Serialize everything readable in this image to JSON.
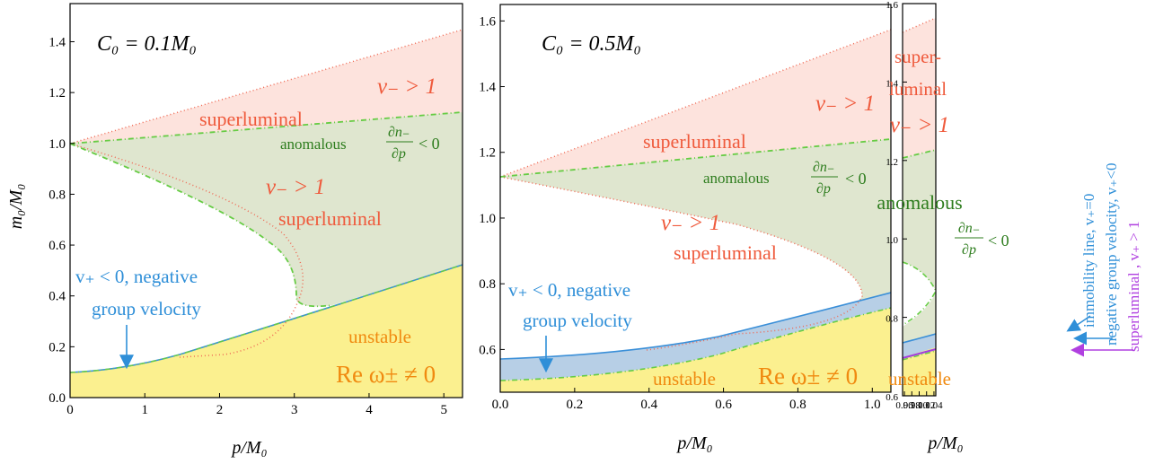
{
  "panels": [
    {
      "annotation": "C₀ = 0.1M₀",
      "xlabel": "p/M₀",
      "ylabel": "m₀/M₀",
      "xlim": [
        0,
        5.25
      ],
      "ylim": [
        0,
        1.55
      ],
      "xticks": [
        "0",
        "1",
        "2",
        "3",
        "4",
        "5"
      ],
      "yticks": [
        "0.0",
        "0.2",
        "0.4",
        "0.6",
        "0.8",
        "1.0",
        "1.2",
        "1.4"
      ],
      "labels": {
        "superluminal_top": "superluminal",
        "vminus_top": "v₋ > 1",
        "anomalous": "anomalous",
        "dn_num": "∂n₋",
        "dn_den": "∂p",
        "dn_rel": "< 0",
        "vminus_mid": "v₋ > 1",
        "superluminal_mid": "superluminal",
        "vplus_line1": "v₊ < 0, negative",
        "vplus_line2": "group velocity",
        "unstable": "unstable",
        "reomega": "Re ω± ≠ 0"
      }
    },
    {
      "annotation": "C₀ = 0.5M₀",
      "xlabel": "p/M₀",
      "xlim": [
        0,
        1.05
      ],
      "ylim": [
        0.47,
        1.65
      ],
      "xticks": [
        "0.0",
        "0.2",
        "0.4",
        "0.6",
        "0.8",
        "1.0"
      ],
      "yticks": [
        "0.6",
        "0.8",
        "1.0",
        "1.2",
        "1.4",
        "1.6"
      ],
      "labels": {
        "superluminal_top": "superluminal",
        "vminus_top": "v₋ > 1",
        "anomalous": "anomalous",
        "dn_num": "∂n₋",
        "dn_den": "∂p",
        "dn_rel": "< 0",
        "vminus_mid": "v₋ > 1",
        "superluminal_mid": "superluminal",
        "vplus_line1": "v₊ < 0, negative",
        "vplus_line2": "group velocity",
        "unstable": "unstable",
        "reomega": "Re ω± ≠ 0"
      }
    },
    {
      "xlabel": "p/M₀",
      "xlim": [
        0.955,
        1.045
      ],
      "ylim": [
        0.6,
        1.6
      ],
      "xticks": [
        "0.96",
        "0.98",
        "1.00",
        "1.02",
        "1.04"
      ],
      "yticks": [
        "0.6",
        "0.8",
        "1.0",
        "1.2",
        "1.4",
        "1.6"
      ],
      "labels": {
        "super": "super-",
        "luminal": "luminal",
        "vminus": "v₋ > 1",
        "anomalous": "anomalous",
        "dn_num": "∂n₋",
        "dn_den": "∂p",
        "dn_rel": "< 0",
        "unstable": "unstable"
      }
    }
  ],
  "side_legend": {
    "immobility": "immobility line, v₊=0",
    "negative": "negative group velocity, v₊<0",
    "superluminal": "superluminal , v₊ > 1"
  },
  "colors": {
    "superluminal_fill": "#fde3dd",
    "anomalous_fill": "#dfe6cf",
    "unstable_fill": "#fbf08f",
    "negvel_fill": "#b7cfe6",
    "red_text": "#ef5a3c",
    "green_text": "#2e7d1e",
    "blue_text": "#2f8fd8",
    "orange_text": "#f08a10",
    "violet_text": "#b040e0"
  },
  "chart_data": [
    {
      "type": "area",
      "title": "C₀ = 0.1M₀",
      "xlabel": "p/M₀",
      "ylabel": "m₀/M₀",
      "xlim": [
        0,
        5.25
      ],
      "ylim": [
        0,
        1.55
      ],
      "series": [
        {
          "name": "superluminal",
          "x": [
            0,
            1,
            2,
            3,
            4,
            5.25
          ],
          "values": [
            1.0,
            1.09,
            1.18,
            1.27,
            1.36,
            1.47
          ]
        },
        {
          "name": "anomalous",
          "x": [
            0,
            1,
            2,
            3,
            4,
            5.25
          ],
          "values": [
            1.0,
            1.02,
            1.04,
            1.06,
            1.09,
            1.13
          ]
        },
        {
          "name": "unstable",
          "x": [
            0,
            0.5,
            1,
            2,
            3,
            4,
            5.25
          ],
          "values": [
            0.1,
            0.11,
            0.14,
            0.23,
            0.33,
            0.43,
            0.54
          ]
        }
      ]
    },
    {
      "type": "area",
      "title": "C₀ = 0.5M₀",
      "xlabel": "p/M₀",
      "xlim": [
        0,
        1.05
      ],
      "ylim": [
        0.47,
        1.65
      ],
      "series": [
        {
          "name": "superluminal",
          "x": [
            0,
            0.2,
            0.4,
            0.6,
            0.8,
            1.05
          ],
          "values": [
            1.12,
            1.19,
            1.28,
            1.37,
            1.46,
            1.56
          ]
        },
        {
          "name": "anomalous",
          "x": [
            0,
            0.2,
            0.4,
            0.6,
            0.8,
            1.05
          ],
          "values": [
            1.12,
            1.14,
            1.16,
            1.18,
            1.2,
            1.24
          ]
        },
        {
          "name": "negative group velocity",
          "x": [
            0,
            0.2,
            0.4,
            0.6,
            0.8,
            1.05
          ],
          "values": [
            0.56,
            0.57,
            0.6,
            0.64,
            0.69,
            0.76
          ]
        },
        {
          "name": "unstable",
          "x": [
            0,
            0.2,
            0.4,
            0.6,
            0.8,
            1.05
          ],
          "values": [
            0.5,
            0.51,
            0.55,
            0.59,
            0.64,
            0.72
          ]
        }
      ]
    },
    {
      "type": "area",
      "xlabel": "p/M₀",
      "xlim": [
        0.955,
        1.045
      ],
      "ylim": [
        0.6,
        1.6
      ],
      "series": [
        {
          "name": "superluminal",
          "x": [
            0.955,
            1.045
          ],
          "values": [
            1.53,
            1.57
          ]
        },
        {
          "name": "anomalous",
          "x": [
            0.955,
            1.045
          ],
          "values": [
            1.22,
            1.24
          ]
        },
        {
          "name": "immobility line",
          "x": [
            0.955,
            1.045
          ],
          "values": [
            0.735,
            0.765
          ]
        },
        {
          "name": "superluminal v+",
          "x": [
            0.955,
            1.045
          ],
          "values": [
            0.69,
            0.725
          ]
        },
        {
          "name": "unstable",
          "x": [
            0.955,
            1.045
          ],
          "values": [
            0.695,
            0.73
          ]
        }
      ]
    }
  ]
}
